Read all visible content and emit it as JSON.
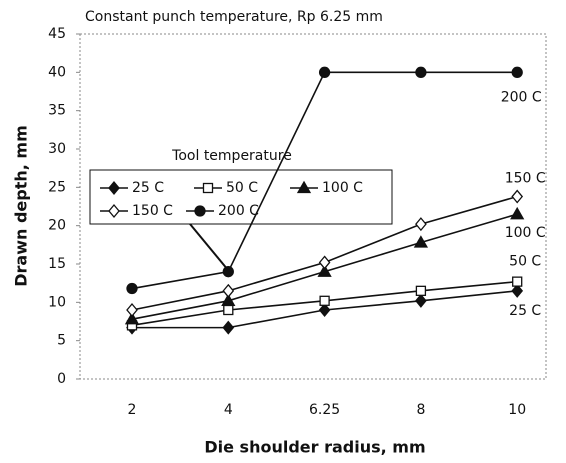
{
  "chart_data": {
    "type": "line",
    "title": "Constant punch temperature, Rp 6.25 mm",
    "x_label": "Die shoulder radius, mm",
    "y_label": "Drawn depth, mm",
    "categories": [
      "2",
      "4",
      "6.25",
      "8",
      "10"
    ],
    "ylim": [
      0,
      45
    ],
    "yticks": [
      0,
      5,
      10,
      15,
      20,
      25,
      30,
      35,
      40,
      45
    ],
    "grid": false,
    "legend_title": "Tool temperature",
    "series": [
      {
        "name": "25 C",
        "color": "#111",
        "marker": "diamond",
        "filled": true,
        "values": [
          6.7,
          6.7,
          9,
          10.2,
          11.5
        ]
      },
      {
        "name": "50 C",
        "color": "#111",
        "marker": "square",
        "filled": false,
        "values": [
          7,
          9,
          10.2,
          11.5,
          12.7
        ]
      },
      {
        "name": "100 C",
        "color": "#111",
        "marker": "triangle",
        "filled": true,
        "values": [
          7.8,
          10.2,
          14,
          17.8,
          21.5
        ]
      },
      {
        "name": "150 C",
        "color": "#111",
        "marker": "diamond",
        "filled": false,
        "values": [
          9,
          11.5,
          15.2,
          20.2,
          23.8
        ]
      },
      {
        "name": "200 C",
        "color": "#111",
        "marker": "circle",
        "filled": true,
        "values": [
          11.8,
          14,
          40,
          40,
          40
        ]
      }
    ],
    "annotations": [
      "25 C",
      "50 C",
      "100 C",
      "150 C",
      "200 C"
    ]
  }
}
